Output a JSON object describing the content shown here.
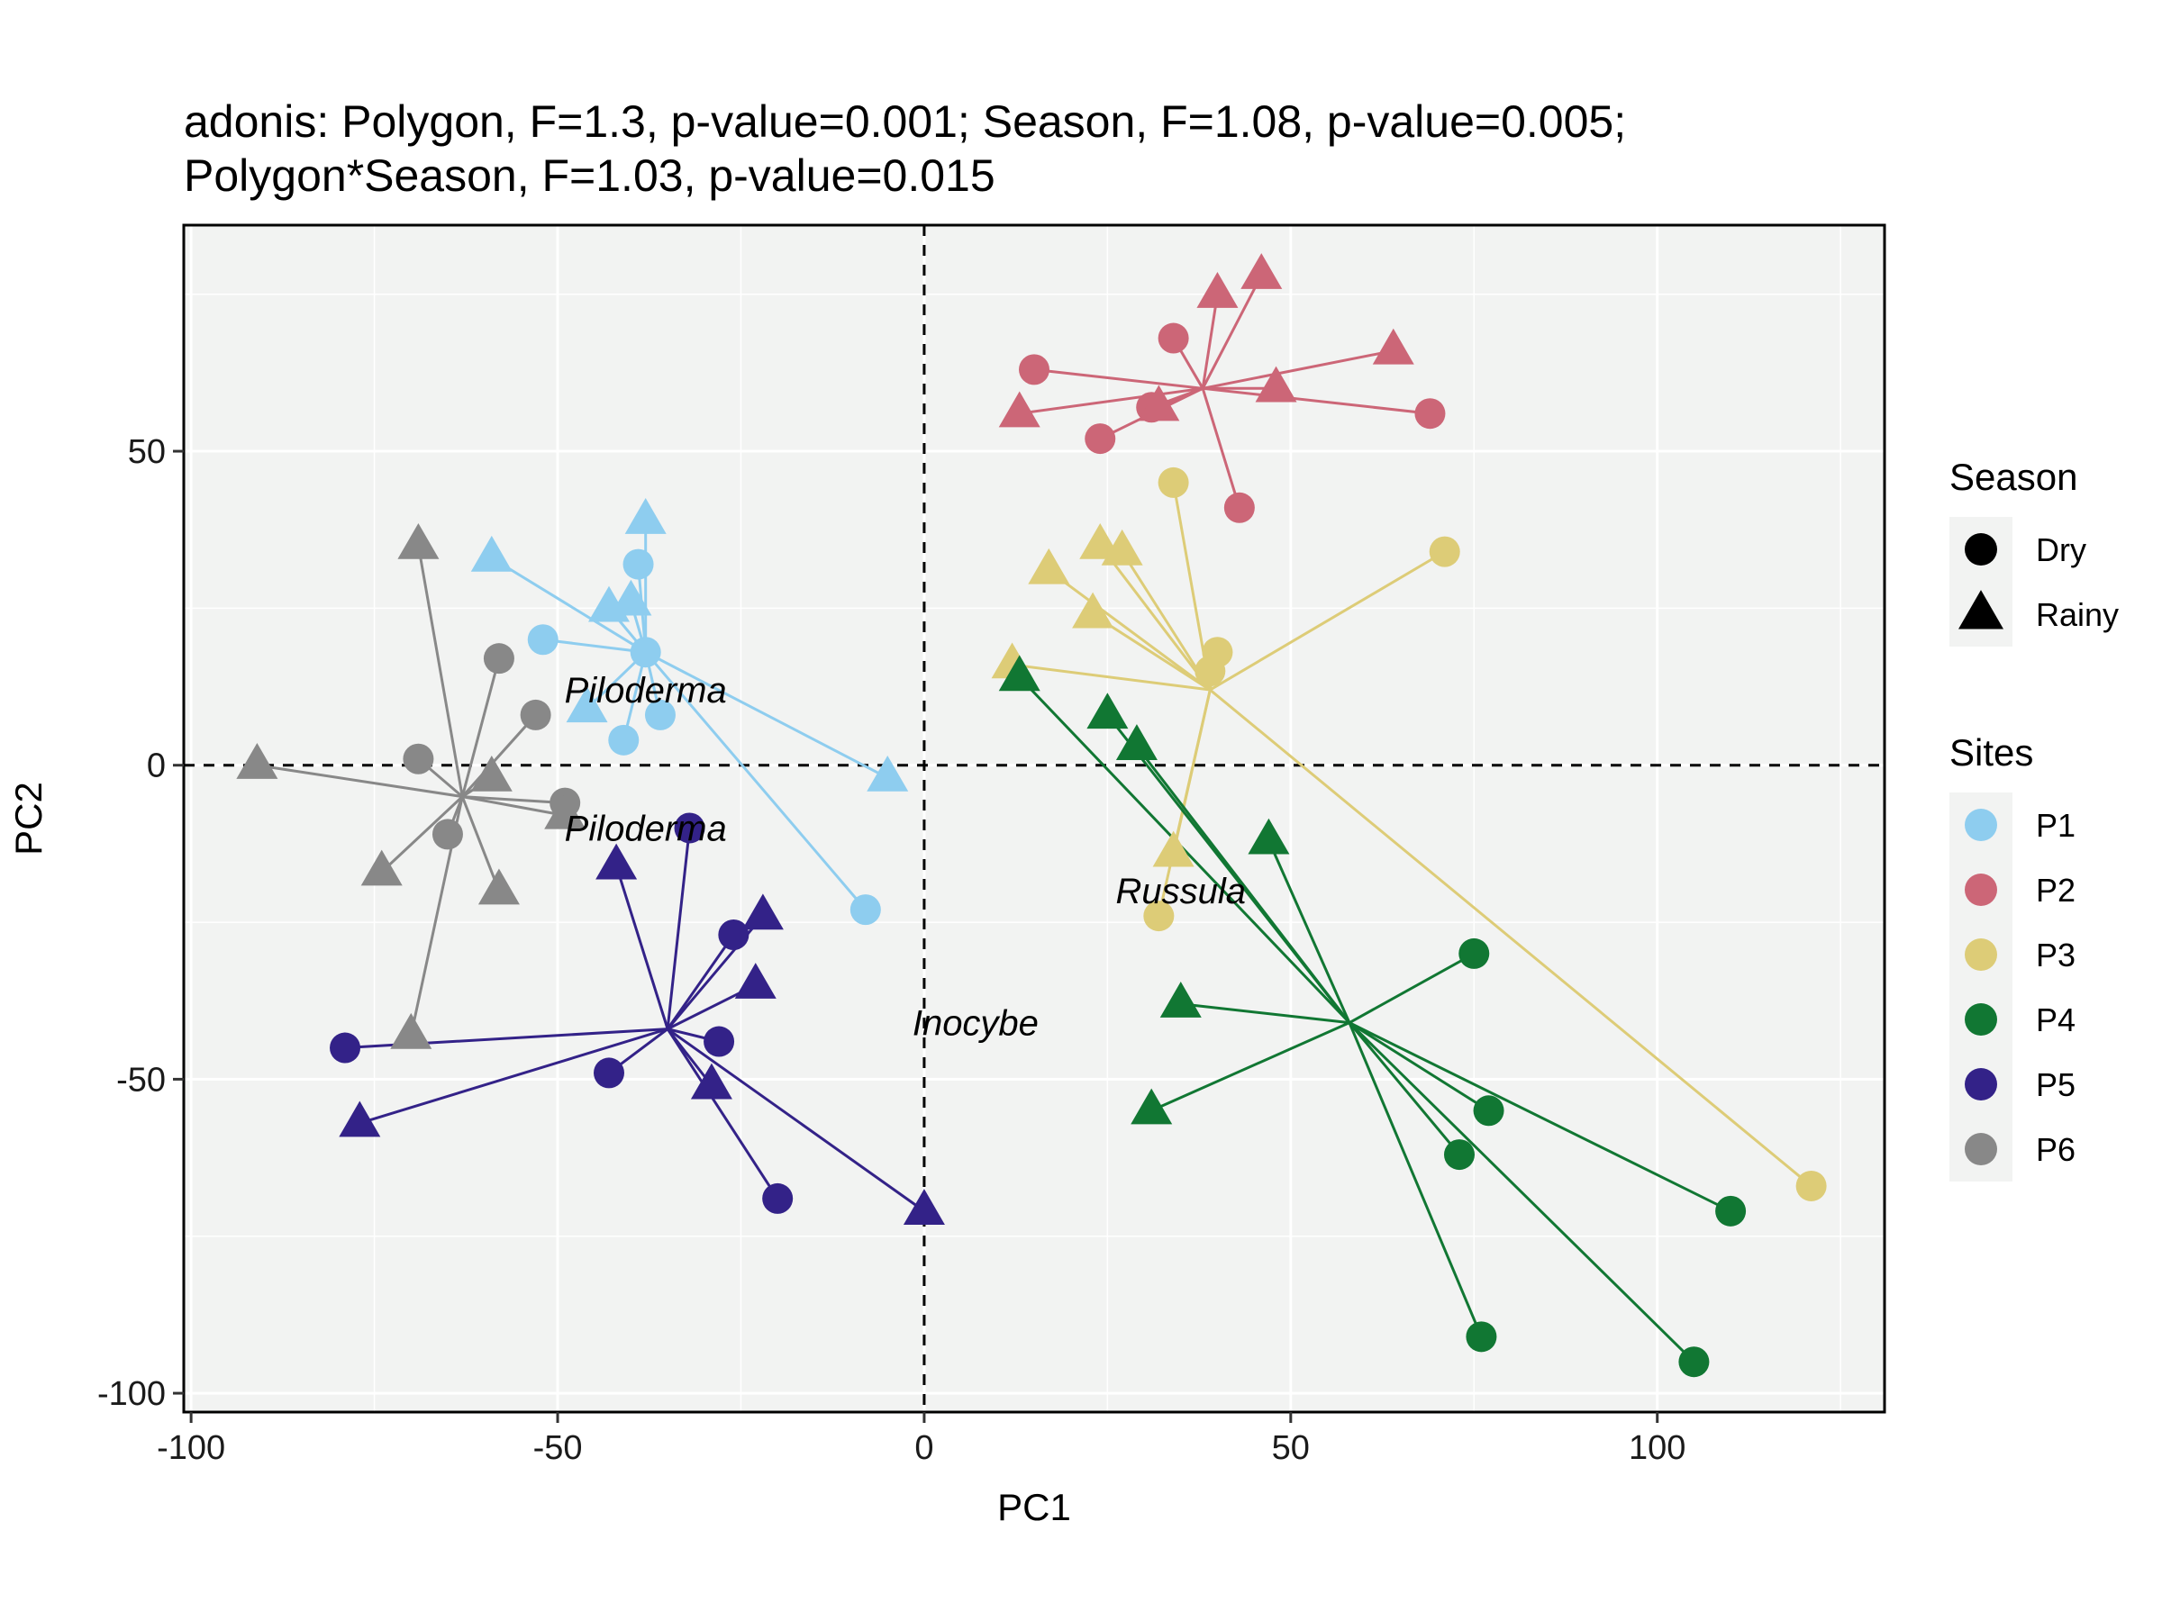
{
  "chart_data": {
    "type": "scatter",
    "title_lines": [
      "adonis: Polygon, F=1.3, p-value=0.001; Season, F=1.08, p-value=0.005;",
      "Polygon*Season, F=1.03, p-value=0.015"
    ],
    "xlabel": "PC1",
    "ylabel": "PC2",
    "xlim": [
      -101,
      131
    ],
    "ylim": [
      -103,
      86
    ],
    "xticks": [
      -100,
      -50,
      0,
      50,
      100
    ],
    "xtick_labels": [
      "-100",
      "-50",
      "0",
      "50",
      "100"
    ],
    "yticks": [
      -100,
      -50,
      0,
      50
    ],
    "ytick_labels": [
      "-100",
      "-50",
      "0",
      "50"
    ],
    "grid": true,
    "panel_background": "#f2f3f2",
    "grid_color": "#ffffff",
    "reference_lines": {
      "x": 0,
      "y": 0,
      "style": "dashed"
    },
    "annotations": [
      {
        "text": "Piloderma",
        "x": -38,
        "y": 12
      },
      {
        "text": "Piloderma",
        "x": -38,
        "y": -10
      },
      {
        "text": "Russula",
        "x": 35,
        "y": -20
      },
      {
        "text": "Inocybe",
        "x": 7,
        "y": -41
      }
    ],
    "legend": {
      "position": "right",
      "season_title": "Season",
      "season_entries": [
        {
          "label": "Dry",
          "shape": "circle"
        },
        {
          "label": "Rainy",
          "shape": "triangle"
        }
      ],
      "sites_title": "Sites"
    },
    "series": [
      {
        "name": "P1",
        "color": "#8ecdef",
        "centroid": [
          -38,
          18
        ],
        "points": [
          {
            "x": -52,
            "y": 20,
            "season": "Dry"
          },
          {
            "x": -39,
            "y": 32,
            "season": "Dry"
          },
          {
            "x": -38,
            "y": 18,
            "season": "Dry"
          },
          {
            "x": -36,
            "y": 8,
            "season": "Dry"
          },
          {
            "x": -41,
            "y": 4,
            "season": "Dry"
          },
          {
            "x": -8,
            "y": -23,
            "season": "Dry"
          },
          {
            "x": -59,
            "y": 33,
            "season": "Rainy"
          },
          {
            "x": -38,
            "y": 39,
            "season": "Rainy"
          },
          {
            "x": -43,
            "y": 25,
            "season": "Rainy"
          },
          {
            "x": -40,
            "y": 26,
            "season": "Rainy"
          },
          {
            "x": -46,
            "y": 9,
            "season": "Rainy"
          },
          {
            "x": -5,
            "y": -2,
            "season": "Rainy"
          }
        ]
      },
      {
        "name": "P2",
        "color": "#cc6677",
        "centroid": [
          38,
          60
        ],
        "points": [
          {
            "x": 15,
            "y": 63,
            "season": "Dry"
          },
          {
            "x": 34,
            "y": 68,
            "season": "Dry"
          },
          {
            "x": 31,
            "y": 57,
            "season": "Dry"
          },
          {
            "x": 24,
            "y": 52,
            "season": "Dry"
          },
          {
            "x": 43,
            "y": 41,
            "season": "Dry"
          },
          {
            "x": 69,
            "y": 56,
            "season": "Dry"
          },
          {
            "x": 40,
            "y": 75,
            "season": "Rainy"
          },
          {
            "x": 46,
            "y": 78,
            "season": "Rainy"
          },
          {
            "x": 64,
            "y": 66,
            "season": "Rainy"
          },
          {
            "x": 48,
            "y": 60,
            "season": "Rainy"
          },
          {
            "x": 13,
            "y": 56,
            "season": "Rainy"
          },
          {
            "x": 32,
            "y": 57,
            "season": "Rainy"
          }
        ]
      },
      {
        "name": "P3",
        "color": "#ddcc77",
        "centroid": [
          39,
          12
        ],
        "points": [
          {
            "x": 34,
            "y": 45,
            "season": "Dry"
          },
          {
            "x": 71,
            "y": 34,
            "season": "Dry"
          },
          {
            "x": 40,
            "y": 18,
            "season": "Dry"
          },
          {
            "x": 39,
            "y": 15,
            "season": "Dry"
          },
          {
            "x": 32,
            "y": -24,
            "season": "Dry"
          },
          {
            "x": 121,
            "y": -67,
            "season": "Dry"
          },
          {
            "x": 17,
            "y": 31,
            "season": "Rainy"
          },
          {
            "x": 24,
            "y": 35,
            "season": "Rainy"
          },
          {
            "x": 27,
            "y": 34,
            "season": "Rainy"
          },
          {
            "x": 23,
            "y": 24,
            "season": "Rainy"
          },
          {
            "x": 12,
            "y": 16,
            "season": "Rainy"
          },
          {
            "x": 34,
            "y": -14,
            "season": "Rainy"
          }
        ]
      },
      {
        "name": "P4",
        "color": "#117733",
        "centroid": [
          58,
          -41
        ],
        "points": [
          {
            "x": 75,
            "y": -30,
            "season": "Dry"
          },
          {
            "x": 77,
            "y": -55,
            "season": "Dry"
          },
          {
            "x": 73,
            "y": -62,
            "season": "Dry"
          },
          {
            "x": 76,
            "y": -91,
            "season": "Dry"
          },
          {
            "x": 110,
            "y": -71,
            "season": "Dry"
          },
          {
            "x": 105,
            "y": -95,
            "season": "Dry"
          },
          {
            "x": 13,
            "y": 14,
            "season": "Rainy"
          },
          {
            "x": 25,
            "y": 8,
            "season": "Rainy"
          },
          {
            "x": 29,
            "y": 3,
            "season": "Rainy"
          },
          {
            "x": 47,
            "y": -12,
            "season": "Rainy"
          },
          {
            "x": 35,
            "y": -38,
            "season": "Rainy"
          },
          {
            "x": 31,
            "y": -55,
            "season": "Rainy"
          }
        ]
      },
      {
        "name": "P5",
        "color": "#332288",
        "centroid": [
          -35,
          -42
        ],
        "points": [
          {
            "x": -32,
            "y": -10,
            "season": "Dry"
          },
          {
            "x": -26,
            "y": -27,
            "season": "Dry"
          },
          {
            "x": -28,
            "y": -44,
            "season": "Dry"
          },
          {
            "x": -43,
            "y": -49,
            "season": "Dry"
          },
          {
            "x": -79,
            "y": -45,
            "season": "Dry"
          },
          {
            "x": -20,
            "y": -69,
            "season": "Dry"
          },
          {
            "x": -42,
            "y": -16,
            "season": "Rainy"
          },
          {
            "x": -22,
            "y": -24,
            "season": "Rainy"
          },
          {
            "x": -23,
            "y": -35,
            "season": "Rainy"
          },
          {
            "x": -29,
            "y": -51,
            "season": "Rainy"
          },
          {
            "x": -77,
            "y": -57,
            "season": "Rainy"
          },
          {
            "x": 0,
            "y": -71,
            "season": "Rainy"
          }
        ]
      },
      {
        "name": "P6",
        "color": "#888888",
        "centroid": [
          -63,
          -5
        ],
        "points": [
          {
            "x": -58,
            "y": 17,
            "season": "Dry"
          },
          {
            "x": -53,
            "y": 8,
            "season": "Dry"
          },
          {
            "x": -69,
            "y": 1,
            "season": "Dry"
          },
          {
            "x": -49,
            "y": -6,
            "season": "Dry"
          },
          {
            "x": -65,
            "y": -11,
            "season": "Dry"
          },
          {
            "x": -69,
            "y": 35,
            "season": "Rainy"
          },
          {
            "x": -91,
            "y": 0,
            "season": "Rainy"
          },
          {
            "x": -59,
            "y": -2,
            "season": "Rainy"
          },
          {
            "x": -74,
            "y": -17,
            "season": "Rainy"
          },
          {
            "x": -58,
            "y": -20,
            "season": "Rainy"
          },
          {
            "x": -70,
            "y": -43,
            "season": "Rainy"
          },
          {
            "x": -49,
            "y": -8,
            "season": "Rainy"
          }
        ]
      }
    ]
  }
}
